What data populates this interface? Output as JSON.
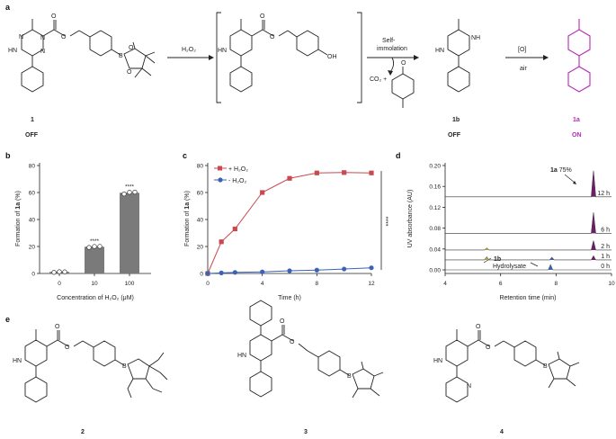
{
  "panels": {
    "a": "a",
    "b": "b",
    "c": "c",
    "d": "d",
    "e": "e"
  },
  "scheme": {
    "reagent_h2o2": "H₂O₂",
    "self_immolation_line1": "Self-",
    "self_immolation_line2": "immolation",
    "co2_plus": "CO₂ +",
    "oxidant": "[O]",
    "air": "air",
    "compound_1": "1",
    "compound_1b": "1b",
    "compound_1a": "1a",
    "state_off_1": "OFF",
    "state_off_1b": "OFF",
    "state_on_1a": "ON",
    "atom_o": "O",
    "atom_b": "B",
    "atom_oh": "OH",
    "atom_hn": "HN",
    "atom_nh": "NH",
    "atom_n": "N",
    "atom_h": "H"
  },
  "compounds_e": [
    "2",
    "3",
    "4"
  ],
  "colors": {
    "bar": "#7a7a7a",
    "plus": "#c9494f",
    "minus": "#3a63b8",
    "peak": "#6b1f66",
    "product": "#b32bb8",
    "hydrolysate": "#3a63b8",
    "annot_1b": "#b8a23a"
  },
  "chart_data": [
    {
      "panel": "b",
      "type": "bar",
      "categories": [
        "0",
        "10",
        "100"
      ],
      "values": [
        1.2,
        19.8,
        59.8
      ],
      "points": [
        [
          0.8,
          1.3,
          1.2
        ],
        [
          19.3,
          20.0,
          20.1
        ],
        [
          58.9,
          60.2,
          60.3
        ]
      ],
      "significance": [
        "",
        "****",
        "****"
      ],
      "xlabel": "Concentration of H₂O₂ (μM)",
      "ylabel_prefix": "Formation of ",
      "ylabel_bold": "1a",
      "ylabel_suffix": " (%)",
      "ylim": [
        0,
        80
      ],
      "yticks": [
        "0",
        "20",
        "40",
        "60",
        "80"
      ]
    },
    {
      "panel": "c",
      "type": "line",
      "x": [
        0,
        1,
        2,
        4,
        6,
        8,
        10,
        12
      ],
      "series": [
        {
          "name": "+ H₂O₂",
          "values": [
            0,
            23.5,
            33.0,
            60.0,
            70.5,
            74.5,
            74.8,
            74.5
          ]
        },
        {
          "name": "- H₂O₂",
          "values": [
            0,
            0.4,
            0.8,
            1.2,
            2.0,
            2.5,
            3.3,
            4.2
          ]
        }
      ],
      "significance": "****",
      "xlabel": "Time (h)",
      "ylabel_prefix": "Formation of ",
      "ylabel_bold": "1a",
      "ylabel_suffix": " (%)",
      "xlim": [
        0,
        12
      ],
      "ylim": [
        0,
        80
      ],
      "xticks": [
        "0",
        "4",
        "8",
        "12"
      ],
      "yticks": [
        "0",
        "20",
        "40",
        "60",
        "80"
      ],
      "legend": "top-left"
    },
    {
      "panel": "d",
      "type": "line",
      "xlabel": "Retention time (min)",
      "ylabel": "UV absorbance (AU)",
      "xlim": [
        4,
        10
      ],
      "ylim": [
        0,
        0.2
      ],
      "xticks": [
        "4",
        "6",
        "8",
        "10"
      ],
      "yticks": [
        "0.00",
        "0.04",
        "0.08",
        "0.12",
        "0.16",
        "0.20"
      ],
      "traces": [
        {
          "label": "0 h",
          "baseline": 0.0,
          "peaks": [
            {
              "rt": 7.8,
              "height": 0.01,
              "kind": "hydrolysate"
            }
          ]
        },
        {
          "label": "1 h",
          "baseline": 0.019,
          "peaks": [
            {
              "rt": 5.5,
              "height": 0.006,
              "kind": "1b"
            },
            {
              "rt": 7.85,
              "height": 0.005,
              "kind": "hydrolysate"
            },
            {
              "rt": 9.35,
              "height": 0.008,
              "kind": "1a"
            }
          ]
        },
        {
          "label": "2 h",
          "baseline": 0.038,
          "peaks": [
            {
              "rt": 5.5,
              "height": 0.004,
              "kind": "1b"
            },
            {
              "rt": 9.35,
              "height": 0.018,
              "kind": "1a"
            }
          ]
        },
        {
          "label": "6 h",
          "baseline": 0.07,
          "peaks": [
            {
              "rt": 9.35,
              "height": 0.04,
              "kind": "1a"
            }
          ]
        },
        {
          "label": "12 h",
          "baseline": 0.14,
          "peaks": [
            {
              "rt": 9.35,
              "height": 0.05,
              "kind": "1a"
            }
          ]
        }
      ],
      "annotations": {
        "a1_bold": "1a",
        "a1_text": " 75%",
        "a1b": "1b",
        "hydrolysate": "Hydrolysate"
      }
    }
  ]
}
